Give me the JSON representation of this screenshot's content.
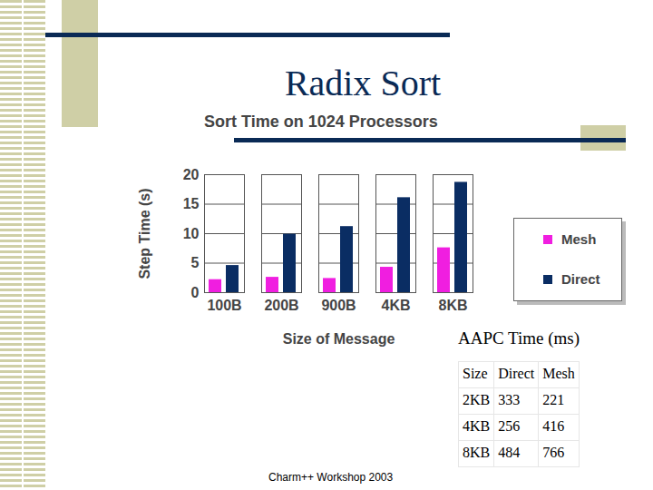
{
  "heading": "Radix Sort",
  "chart_data": {
    "type": "bar",
    "title": "Sort Time on 1024 Processors",
    "x_label": "Size of Message",
    "y_label": "Step Time (s)",
    "categories": [
      "100B",
      "200B",
      "900B",
      "4KB",
      "8KB"
    ],
    "series": [
      {
        "name": "Mesh",
        "color": "#f01ee0",
        "values": [
          2.2,
          2.6,
          2.4,
          4.3,
          7.6
        ]
      },
      {
        "name": "Direct",
        "color": "#0a2d63",
        "values": [
          4.6,
          9.9,
          11.2,
          16.1,
          18.7
        ]
      }
    ],
    "ylim": [
      0,
      20
    ],
    "yticks": [
      0,
      5,
      10,
      15,
      20
    ],
    "grid": true,
    "legend": "right"
  },
  "table": {
    "title": "AAPC Time (ms)",
    "header": [
      "Size",
      "Direct",
      "Mesh"
    ],
    "rows": [
      [
        "2KB",
        333,
        221
      ],
      [
        "4KB",
        256,
        416
      ],
      [
        "8KB",
        484,
        766
      ]
    ]
  },
  "footer": "Charm++ Workshop 2003"
}
